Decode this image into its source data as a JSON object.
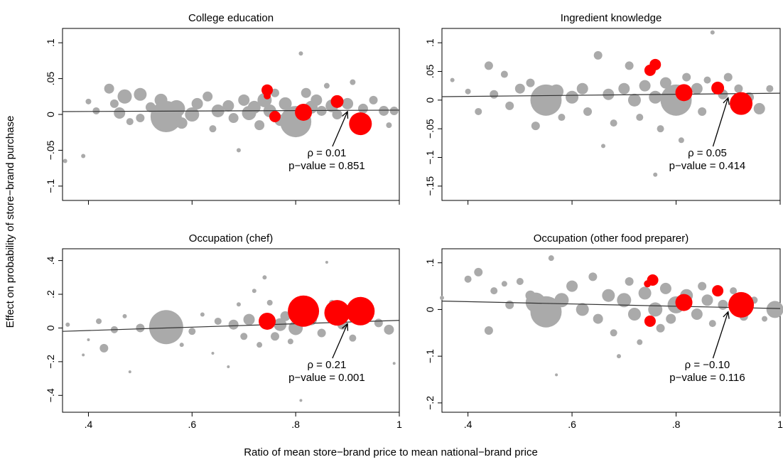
{
  "figure": {
    "ylabel": "Effect on probability of store−brand purchase",
    "xlabel": "Ratio of mean store−brand price to mean national−brand price"
  },
  "colors": {
    "background_dots": "#aaaaaa",
    "highlight_dots": "#ff0000",
    "fit_line": "#333333"
  },
  "chart_data": [
    {
      "type": "scatter",
      "title": "College education",
      "xlim": [
        0.35,
        1.0
      ],
      "ylim": [
        -0.12,
        0.12
      ],
      "xticks": [
        0.4,
        0.6,
        0.8,
        1.0
      ],
      "xtick_labels": [
        ".4",
        ".6",
        ".8",
        "1"
      ],
      "show_xtick_labels": false,
      "yticks": [
        -0.1,
        -0.05,
        0,
        0.05,
        0.1
      ],
      "ytick_labels": [
        "−.1",
        "−.05",
        "0",
        ".05",
        ".1"
      ],
      "fit_line": [
        [
          0.35,
          0.004
        ],
        [
          1.0,
          0.006
        ]
      ],
      "annotation": {
        "rho": "ρ = 0.01",
        "pvalue": "p−value = 0.851",
        "arrow_to": [
          0.9,
          0.004
        ]
      },
      "highlight_points": [
        {
          "x": 0.745,
          "y": 0.034,
          "s": 8
        },
        {
          "x": 0.745,
          "y": 0.026,
          "s": 5
        },
        {
          "x": 0.76,
          "y": -0.003,
          "s": 8
        },
        {
          "x": 0.815,
          "y": 0.003,
          "s": 12
        },
        {
          "x": 0.88,
          "y": 0.018,
          "s": 9
        },
        {
          "x": 0.925,
          "y": -0.013,
          "s": 16
        }
      ],
      "background_points": [
        {
          "x": 0.355,
          "y": -0.065,
          "s": 3
        },
        {
          "x": 0.39,
          "y": -0.058,
          "s": 3
        },
        {
          "x": 0.4,
          "y": 0.018,
          "s": 4
        },
        {
          "x": 0.415,
          "y": 0.005,
          "s": 5
        },
        {
          "x": 0.44,
          "y": 0.036,
          "s": 7
        },
        {
          "x": 0.45,
          "y": 0.015,
          "s": 6
        },
        {
          "x": 0.46,
          "y": 0.002,
          "s": 8
        },
        {
          "x": 0.47,
          "y": 0.025,
          "s": 10
        },
        {
          "x": 0.48,
          "y": -0.01,
          "s": 5
        },
        {
          "x": 0.5,
          "y": 0.028,
          "s": 9
        },
        {
          "x": 0.5,
          "y": -0.005,
          "s": 6
        },
        {
          "x": 0.52,
          "y": 0.01,
          "s": 7
        },
        {
          "x": 0.54,
          "y": 0.02,
          "s": 9
        },
        {
          "x": 0.55,
          "y": -0.003,
          "s": 22
        },
        {
          "x": 0.57,
          "y": 0.008,
          "s": 12
        },
        {
          "x": 0.58,
          "y": -0.012,
          "s": 8
        },
        {
          "x": 0.6,
          "y": 0.0,
          "s": 10
        },
        {
          "x": 0.61,
          "y": 0.015,
          "s": 8
        },
        {
          "x": 0.63,
          "y": 0.025,
          "s": 7
        },
        {
          "x": 0.64,
          "y": -0.02,
          "s": 5
        },
        {
          "x": 0.65,
          "y": 0.005,
          "s": 9
        },
        {
          "x": 0.67,
          "y": 0.012,
          "s": 8
        },
        {
          "x": 0.68,
          "y": -0.005,
          "s": 7
        },
        {
          "x": 0.69,
          "y": -0.05,
          "s": 3
        },
        {
          "x": 0.7,
          "y": 0.02,
          "s": 8
        },
        {
          "x": 0.71,
          "y": 0.002,
          "s": 10
        },
        {
          "x": 0.72,
          "y": 0.01,
          "s": 9
        },
        {
          "x": 0.73,
          "y": -0.015,
          "s": 7
        },
        {
          "x": 0.74,
          "y": 0.02,
          "s": 10
        },
        {
          "x": 0.75,
          "y": 0.005,
          "s": 9
        },
        {
          "x": 0.76,
          "y": 0.03,
          "s": 6
        },
        {
          "x": 0.77,
          "y": -0.008,
          "s": 8
        },
        {
          "x": 0.78,
          "y": 0.015,
          "s": 9
        },
        {
          "x": 0.79,
          "y": -0.02,
          "s": 6
        },
        {
          "x": 0.8,
          "y": -0.01,
          "s": 22
        },
        {
          "x": 0.81,
          "y": 0.085,
          "s": 3
        },
        {
          "x": 0.82,
          "y": 0.03,
          "s": 7
        },
        {
          "x": 0.83,
          "y": 0.01,
          "s": 9
        },
        {
          "x": 0.84,
          "y": 0.02,
          "s": 8
        },
        {
          "x": 0.85,
          "y": 0.005,
          "s": 7
        },
        {
          "x": 0.86,
          "y": 0.04,
          "s": 4
        },
        {
          "x": 0.87,
          "y": 0.012,
          "s": 9
        },
        {
          "x": 0.88,
          "y": 0.0,
          "s": 7
        },
        {
          "x": 0.9,
          "y": 0.015,
          "s": 8
        },
        {
          "x": 0.91,
          "y": 0.045,
          "s": 4
        },
        {
          "x": 0.93,
          "y": 0.008,
          "s": 7
        },
        {
          "x": 0.95,
          "y": 0.02,
          "s": 6
        },
        {
          "x": 0.97,
          "y": 0.005,
          "s": 7
        },
        {
          "x": 0.98,
          "y": -0.015,
          "s": 4
        },
        {
          "x": 0.99,
          "y": 0.005,
          "s": 6
        }
      ]
    },
    {
      "type": "scatter",
      "title": "Ingredient knowledge",
      "xlim": [
        0.35,
        1.0
      ],
      "ylim": [
        -0.175,
        0.125
      ],
      "xticks": [
        0.4,
        0.6,
        0.8,
        1.0
      ],
      "xtick_labels": [
        ".4",
        ".6",
        ".8",
        "1"
      ],
      "show_xtick_labels": false,
      "yticks": [
        -0.15,
        -0.1,
        -0.05,
        0,
        0.05,
        0.1
      ],
      "ytick_labels": [
        "−.15",
        "−.1",
        "−.05",
        "0",
        ".05",
        ".1"
      ],
      "fit_line": [
        [
          0.35,
          0.006
        ],
        [
          1.0,
          0.012
        ]
      ],
      "annotation": {
        "rho": "ρ = 0.05",
        "pvalue": "p−value = 0.414",
        "arrow_to": [
          0.9,
          0.004
        ]
      },
      "highlight_points": [
        {
          "x": 0.75,
          "y": 0.052,
          "s": 8
        },
        {
          "x": 0.76,
          "y": 0.062,
          "s": 8
        },
        {
          "x": 0.815,
          "y": 0.013,
          "s": 12
        },
        {
          "x": 0.88,
          "y": 0.021,
          "s": 9
        },
        {
          "x": 0.925,
          "y": -0.006,
          "s": 16
        }
      ],
      "background_points": [
        {
          "x": 0.37,
          "y": 0.035,
          "s": 3
        },
        {
          "x": 0.4,
          "y": 0.015,
          "s": 4
        },
        {
          "x": 0.42,
          "y": -0.02,
          "s": 5
        },
        {
          "x": 0.44,
          "y": 0.06,
          "s": 6
        },
        {
          "x": 0.45,
          "y": 0.01,
          "s": 6
        },
        {
          "x": 0.47,
          "y": 0.045,
          "s": 5
        },
        {
          "x": 0.48,
          "y": -0.01,
          "s": 6
        },
        {
          "x": 0.5,
          "y": 0.02,
          "s": 7
        },
        {
          "x": 0.52,
          "y": 0.03,
          "s": 6
        },
        {
          "x": 0.53,
          "y": -0.045,
          "s": 6
        },
        {
          "x": 0.55,
          "y": 0.0,
          "s": 22
        },
        {
          "x": 0.57,
          "y": 0.015,
          "s": 10
        },
        {
          "x": 0.58,
          "y": -0.03,
          "s": 5
        },
        {
          "x": 0.6,
          "y": 0.005,
          "s": 9
        },
        {
          "x": 0.62,
          "y": 0.02,
          "s": 8
        },
        {
          "x": 0.63,
          "y": -0.02,
          "s": 6
        },
        {
          "x": 0.65,
          "y": 0.078,
          "s": 6
        },
        {
          "x": 0.66,
          "y": -0.08,
          "s": 3
        },
        {
          "x": 0.67,
          "y": 0.01,
          "s": 8
        },
        {
          "x": 0.68,
          "y": -0.04,
          "s": 5
        },
        {
          "x": 0.7,
          "y": 0.02,
          "s": 8
        },
        {
          "x": 0.71,
          "y": 0.06,
          "s": 6
        },
        {
          "x": 0.72,
          "y": 0.0,
          "s": 9
        },
        {
          "x": 0.73,
          "y": -0.03,
          "s": 5
        },
        {
          "x": 0.74,
          "y": 0.025,
          "s": 8
        },
        {
          "x": 0.76,
          "y": 0.005,
          "s": 9
        },
        {
          "x": 0.77,
          "y": -0.05,
          "s": 5
        },
        {
          "x": 0.78,
          "y": 0.03,
          "s": 8
        },
        {
          "x": 0.79,
          "y": -0.01,
          "s": 8
        },
        {
          "x": 0.8,
          "y": 0.0,
          "s": 22
        },
        {
          "x": 0.81,
          "y": -0.07,
          "s": 4
        },
        {
          "x": 0.82,
          "y": 0.04,
          "s": 6
        },
        {
          "x": 0.84,
          "y": 0.02,
          "s": 8
        },
        {
          "x": 0.85,
          "y": -0.02,
          "s": 6
        },
        {
          "x": 0.86,
          "y": 0.035,
          "s": 5
        },
        {
          "x": 0.87,
          "y": 0.118,
          "s": 3
        },
        {
          "x": 0.89,
          "y": 0.01,
          "s": 7
        },
        {
          "x": 0.9,
          "y": 0.04,
          "s": 6
        },
        {
          "x": 0.92,
          "y": 0.02,
          "s": 6
        },
        {
          "x": 0.94,
          "y": 0.005,
          "s": 7
        },
        {
          "x": 0.96,
          "y": -0.015,
          "s": 8
        },
        {
          "x": 0.98,
          "y": 0.02,
          "s": 5
        },
        {
          "x": 0.76,
          "y": -0.13,
          "s": 3
        }
      ]
    },
    {
      "type": "scatter",
      "title": "Occupation (chef)",
      "xlim": [
        0.35,
        1.0
      ],
      "ylim": [
        -0.5,
        0.47
      ],
      "xticks": [
        0.4,
        0.6,
        0.8,
        1.0
      ],
      "xtick_labels": [
        ".4",
        ".6",
        ".8",
        "1"
      ],
      "show_xtick_labels": true,
      "yticks": [
        -0.4,
        -0.2,
        0,
        0.2,
        0.4
      ],
      "ytick_labels": [
        "−.4",
        "−.2",
        "0",
        ".2",
        ".4"
      ],
      "fit_line": [
        [
          0.35,
          -0.02
        ],
        [
          1.0,
          0.045
        ]
      ],
      "annotation": {
        "rho": "ρ = 0.21",
        "pvalue": "p−value = 0.001",
        "arrow_to": [
          0.9,
          0.025
        ]
      },
      "highlight_points": [
        {
          "x": 0.745,
          "y": 0.04,
          "s": 12
        },
        {
          "x": 0.815,
          "y": 0.1,
          "s": 22
        },
        {
          "x": 0.88,
          "y": 0.09,
          "s": 18
        },
        {
          "x": 0.925,
          "y": 0.1,
          "s": 20
        }
      ],
      "background_points": [
        {
          "x": 0.36,
          "y": 0.02,
          "s": 3
        },
        {
          "x": 0.39,
          "y": -0.16,
          "s": 2
        },
        {
          "x": 0.4,
          "y": -0.07,
          "s": 2
        },
        {
          "x": 0.42,
          "y": 0.04,
          "s": 4
        },
        {
          "x": 0.43,
          "y": -0.12,
          "s": 6
        },
        {
          "x": 0.45,
          "y": -0.01,
          "s": 5
        },
        {
          "x": 0.47,
          "y": 0.07,
          "s": 3
        },
        {
          "x": 0.48,
          "y": -0.26,
          "s": 2
        },
        {
          "x": 0.5,
          "y": 0.0,
          "s": 6
        },
        {
          "x": 0.55,
          "y": 0.005,
          "s": 24
        },
        {
          "x": 0.58,
          "y": -0.1,
          "s": 3
        },
        {
          "x": 0.6,
          "y": -0.02,
          "s": 5
        },
        {
          "x": 0.62,
          "y": 0.08,
          "s": 3
        },
        {
          "x": 0.64,
          "y": -0.15,
          "s": 2
        },
        {
          "x": 0.65,
          "y": 0.04,
          "s": 5
        },
        {
          "x": 0.67,
          "y": -0.23,
          "s": 2
        },
        {
          "x": 0.68,
          "y": 0.02,
          "s": 7
        },
        {
          "x": 0.69,
          "y": 0.14,
          "s": 3
        },
        {
          "x": 0.7,
          "y": -0.05,
          "s": 5
        },
        {
          "x": 0.71,
          "y": 0.05,
          "s": 8
        },
        {
          "x": 0.72,
          "y": 0.22,
          "s": 3
        },
        {
          "x": 0.73,
          "y": -0.1,
          "s": 4
        },
        {
          "x": 0.74,
          "y": 0.3,
          "s": 3
        },
        {
          "x": 0.75,
          "y": 0.15,
          "s": 4
        },
        {
          "x": 0.76,
          "y": -0.05,
          "s": 6
        },
        {
          "x": 0.77,
          "y": 0.02,
          "s": 9
        },
        {
          "x": 0.78,
          "y": 0.07,
          "s": 7
        },
        {
          "x": 0.79,
          "y": -0.08,
          "s": 4
        },
        {
          "x": 0.8,
          "y": 0.0,
          "s": 10
        },
        {
          "x": 0.81,
          "y": -0.43,
          "s": 2
        },
        {
          "x": 0.83,
          "y": 0.05,
          "s": 8
        },
        {
          "x": 0.85,
          "y": -0.03,
          "s": 6
        },
        {
          "x": 0.86,
          "y": 0.39,
          "s": 2
        },
        {
          "x": 0.87,
          "y": 0.15,
          "s": 4
        },
        {
          "x": 0.89,
          "y": 0.02,
          "s": 7
        },
        {
          "x": 0.91,
          "y": -0.06,
          "s": 5
        },
        {
          "x": 0.93,
          "y": 0.05,
          "s": 6
        },
        {
          "x": 0.96,
          "y": 0.03,
          "s": 6
        },
        {
          "x": 0.98,
          "y": -0.01,
          "s": 7
        },
        {
          "x": 0.99,
          "y": -0.21,
          "s": 2
        }
      ]
    },
    {
      "type": "scatter",
      "title": "Occupation (other food preparer)",
      "xlim": [
        0.35,
        1.0
      ],
      "ylim": [
        -0.22,
        0.13
      ],
      "xticks": [
        0.4,
        0.6,
        0.8,
        1.0
      ],
      "xtick_labels": [
        ".4",
        ".6",
        ".8",
        "1"
      ],
      "show_xtick_labels": true,
      "yticks": [
        -0.2,
        -0.1,
        0,
        0.1
      ],
      "ytick_labels": [
        "−.2",
        "−.1",
        "0",
        ".1"
      ],
      "fit_line": [
        [
          0.35,
          0.018
        ],
        [
          1.0,
          0.002
        ]
      ],
      "annotation": {
        "rho": "ρ = −0.10",
        "pvalue": "p−value = 0.116",
        "arrow_to": [
          0.9,
          -0.005
        ]
      },
      "highlight_points": [
        {
          "x": 0.745,
          "y": 0.055,
          "s": 5
        },
        {
          "x": 0.755,
          "y": 0.063,
          "s": 8
        },
        {
          "x": 0.75,
          "y": -0.025,
          "s": 8
        },
        {
          "x": 0.815,
          "y": 0.015,
          "s": 12
        },
        {
          "x": 0.88,
          "y": 0.04,
          "s": 8
        },
        {
          "x": 0.925,
          "y": 0.01,
          "s": 18
        }
      ],
      "background_points": [
        {
          "x": 0.35,
          "y": 0.025,
          "s": 3
        },
        {
          "x": 0.4,
          "y": 0.065,
          "s": 5
        },
        {
          "x": 0.42,
          "y": 0.08,
          "s": 6
        },
        {
          "x": 0.44,
          "y": -0.045,
          "s": 6
        },
        {
          "x": 0.45,
          "y": 0.04,
          "s": 5
        },
        {
          "x": 0.47,
          "y": 0.055,
          "s": 4
        },
        {
          "x": 0.48,
          "y": 0.01,
          "s": 6
        },
        {
          "x": 0.5,
          "y": 0.06,
          "s": 5
        },
        {
          "x": 0.52,
          "y": 0.03,
          "s": 7
        },
        {
          "x": 0.53,
          "y": 0.015,
          "s": 14
        },
        {
          "x": 0.55,
          "y": -0.005,
          "s": 22
        },
        {
          "x": 0.56,
          "y": 0.11,
          "s": 4
        },
        {
          "x": 0.57,
          "y": -0.14,
          "s": 2
        },
        {
          "x": 0.58,
          "y": 0.02,
          "s": 10
        },
        {
          "x": 0.6,
          "y": 0.05,
          "s": 8
        },
        {
          "x": 0.62,
          "y": 0.0,
          "s": 9
        },
        {
          "x": 0.64,
          "y": 0.07,
          "s": 6
        },
        {
          "x": 0.65,
          "y": -0.02,
          "s": 7
        },
        {
          "x": 0.67,
          "y": 0.03,
          "s": 9
        },
        {
          "x": 0.68,
          "y": -0.05,
          "s": 5
        },
        {
          "x": 0.69,
          "y": -0.1,
          "s": 3
        },
        {
          "x": 0.7,
          "y": 0.02,
          "s": 10
        },
        {
          "x": 0.71,
          "y": 0.06,
          "s": 6
        },
        {
          "x": 0.72,
          "y": -0.01,
          "s": 9
        },
        {
          "x": 0.73,
          "y": -0.07,
          "s": 4
        },
        {
          "x": 0.74,
          "y": 0.035,
          "s": 9
        },
        {
          "x": 0.76,
          "y": 0.0,
          "s": 10
        },
        {
          "x": 0.77,
          "y": -0.04,
          "s": 6
        },
        {
          "x": 0.78,
          "y": 0.045,
          "s": 8
        },
        {
          "x": 0.79,
          "y": -0.02,
          "s": 7
        },
        {
          "x": 0.8,
          "y": 0.01,
          "s": 12
        },
        {
          "x": 0.82,
          "y": 0.03,
          "s": 9
        },
        {
          "x": 0.84,
          "y": -0.01,
          "s": 8
        },
        {
          "x": 0.85,
          "y": 0.05,
          "s": 6
        },
        {
          "x": 0.86,
          "y": 0.02,
          "s": 8
        },
        {
          "x": 0.87,
          "y": -0.03,
          "s": 5
        },
        {
          "x": 0.89,
          "y": 0.01,
          "s": 7
        },
        {
          "x": 0.91,
          "y": 0.04,
          "s": 5
        },
        {
          "x": 0.93,
          "y": -0.015,
          "s": 6
        },
        {
          "x": 0.95,
          "y": 0.02,
          "s": 5
        },
        {
          "x": 0.97,
          "y": -0.02,
          "s": 4
        },
        {
          "x": 0.99,
          "y": 0.0,
          "s": 12
        }
      ]
    }
  ]
}
